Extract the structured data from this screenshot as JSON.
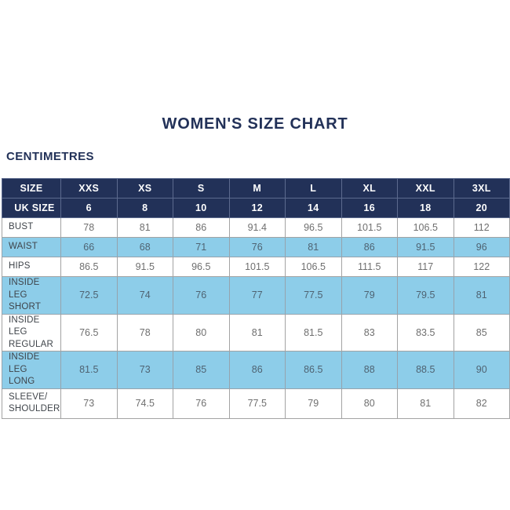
{
  "page": {
    "title": "WOMEN'S SIZE CHART",
    "units_label": "CENTIMETRES"
  },
  "colors": {
    "navy": "#223158",
    "light_blue": "#8dcde9",
    "grey_border": "#a3a3a3",
    "row_label_text": "#3f444a",
    "white_row_text": "#6f6f6f",
    "blue_row_text": "#4f6372"
  },
  "chart_data": {
    "type": "table",
    "title": "WOMEN'S SIZE CHART",
    "units": "CENTIMETRES",
    "columns": [
      "SIZE",
      "XXS",
      "XS",
      "S",
      "M",
      "L",
      "XL",
      "XXL",
      "3XL"
    ],
    "rows": [
      {
        "label": "UK SIZE",
        "style": "navy",
        "values": [
          "6",
          "8",
          "10",
          "12",
          "14",
          "16",
          "18",
          "20"
        ]
      },
      {
        "label": "BUST",
        "style": "white",
        "values": [
          "78",
          "81",
          "86",
          "91.4",
          "96.5",
          "101.5",
          "106.5",
          "112"
        ]
      },
      {
        "label": "WAIST",
        "style": "blue",
        "values": [
          "66",
          "68",
          "71",
          "76",
          "81",
          "86",
          "91.5",
          "96"
        ]
      },
      {
        "label": "HIPS",
        "style": "white",
        "values": [
          "86.5",
          "91.5",
          "96.5",
          "101.5",
          "106.5",
          "111.5",
          "117",
          "122"
        ]
      },
      {
        "label": "INSIDE LEG\nSHORT",
        "style": "blue",
        "values": [
          "72.5",
          "74",
          "76",
          "77",
          "77.5",
          "79",
          "79.5",
          "81"
        ]
      },
      {
        "label": "INSIDE LEG\nREGULAR",
        "style": "white",
        "values": [
          "76.5",
          "78",
          "80",
          "81",
          "81.5",
          "83",
          "83.5",
          "85"
        ]
      },
      {
        "label": "INSIDE LEG\nLONG",
        "style": "blue",
        "values": [
          "81.5",
          "73",
          "85",
          "86",
          "86.5",
          "88",
          "88.5",
          "90"
        ]
      },
      {
        "label": "SLEEVE/\nSHOULDER",
        "style": "white",
        "values": [
          "73",
          "74.5",
          "76",
          "77.5",
          "79",
          "80",
          "81",
          "82"
        ]
      }
    ]
  }
}
